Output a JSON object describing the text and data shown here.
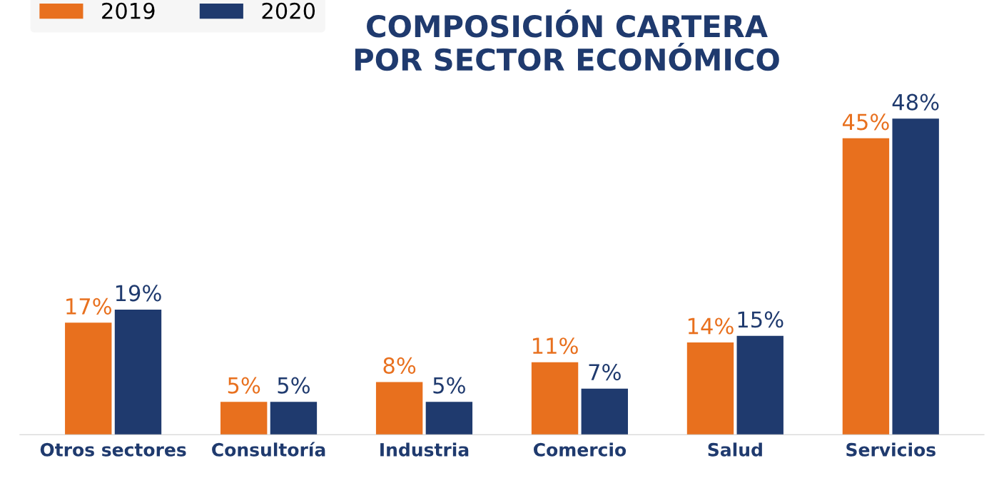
{
  "chart_data": {
    "type": "bar",
    "title": "COMPOSICIÓN CARTERA\nPOR SECTOR ECONÓMICO",
    "categories": [
      "Otros sectores",
      "Consultoría",
      "Industria",
      "Comercio",
      "Salud",
      "Servicios"
    ],
    "series": [
      {
        "name": "2019",
        "color": "#e8701e",
        "values": [
          17,
          5,
          8,
          11,
          14,
          45
        ],
        "value_labels": [
          "17%",
          "5%",
          "8%",
          "11%",
          "14%",
          "45%"
        ]
      },
      {
        "name": "2020",
        "color": "#1f3a6e",
        "values": [
          19,
          5,
          5,
          7,
          15,
          48
        ],
        "value_labels": [
          "19%",
          "5%",
          "5%",
          "7%",
          "15%",
          "48%"
        ]
      }
    ],
    "legend": "top left",
    "grid": false
  }
}
